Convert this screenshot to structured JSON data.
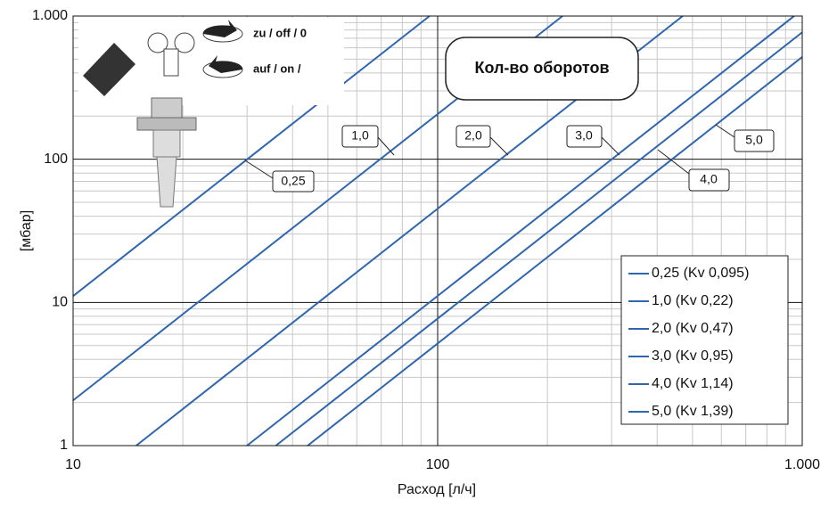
{
  "chart_data": {
    "type": "line",
    "title": "Кол-во оборотов",
    "x_label": "Расход [л/ч]",
    "y_label": "[мбар]",
    "icon_texts": [
      "zu / off / 0",
      "auf / on /"
    ],
    "log_x": true,
    "log_y": true,
    "grid": true,
    "minor_grid": true,
    "xlim": [
      10,
      1000
    ],
    "ylim": [
      1,
      1000
    ],
    "xticks": [
      10,
      100,
      {
        "value": 1000,
        "label": "1.000"
      }
    ],
    "yticks": [
      1,
      10,
      100,
      {
        "value": 1000,
        "label": "1.000"
      }
    ],
    "legend": "lower right",
    "series": [
      {
        "name": "0,25 (Kv 0,095)",
        "color": "#2f66ad",
        "x": [
          10,
          95
        ],
        "values": [
          11.08,
          1000
        ]
      },
      {
        "name": "1,0 (Kv 0,22)",
        "color": "#2f66ad",
        "x": [
          10,
          220
        ],
        "values": [
          2.07,
          1000
        ]
      },
      {
        "name": "2,0 (Kv 0,47)",
        "color": "#2f66ad",
        "x": [
          14.9,
          470
        ],
        "values": [
          1,
          1000
        ]
      },
      {
        "name": "3,0 (Kv 0,95)",
        "color": "#2f66ad",
        "x": [
          30,
          950
        ],
        "values": [
          1,
          1000
        ]
      },
      {
        "name": "4,0 (Kv 1,14)",
        "color": "#2f66ad",
        "x": [
          36,
          1000
        ],
        "values": [
          1,
          770
        ]
      },
      {
        "name": "5,0 (Kv 1,39)",
        "color": "#2f66ad",
        "x": [
          44,
          1000
        ],
        "values": [
          1,
          518
        ]
      }
    ],
    "annotations": [
      "0,25",
      "1,0",
      "2,0",
      "3,0",
      "4,0",
      "5,0"
    ]
  }
}
